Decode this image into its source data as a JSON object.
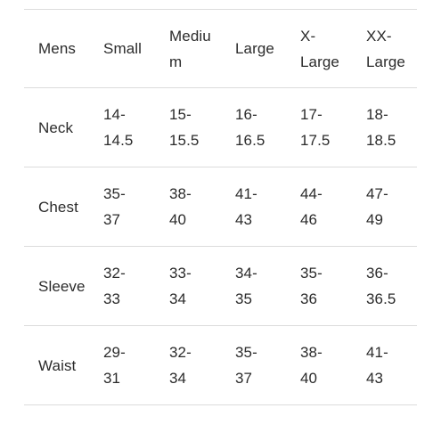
{
  "table": {
    "headers": [
      "Mens",
      "Small",
      "Medium",
      "Large",
      "X-\nLarge",
      "XX-\nLarge"
    ],
    "rows": [
      {
        "label": "Neck",
        "values": [
          "14-\n14.5",
          "15-\n15.5",
          "16-\n16.5",
          "17-\n17.5",
          "18-\n18.5"
        ]
      },
      {
        "label": "Chest",
        "values": [
          "35-\n37",
          "38-\n40",
          "41-\n43",
          "44-\n46",
          "47-\n49"
        ]
      },
      {
        "label": "Sleeve",
        "values": [
          "32-\n33",
          "33-\n34",
          "34-\n35",
          "35-\n36",
          "36-\n36.5"
        ]
      },
      {
        "label": "Waist",
        "values": [
          "29-\n31",
          "32-\n34",
          "35-\n37",
          "38-\n40",
          "41-\n43"
        ]
      }
    ]
  }
}
